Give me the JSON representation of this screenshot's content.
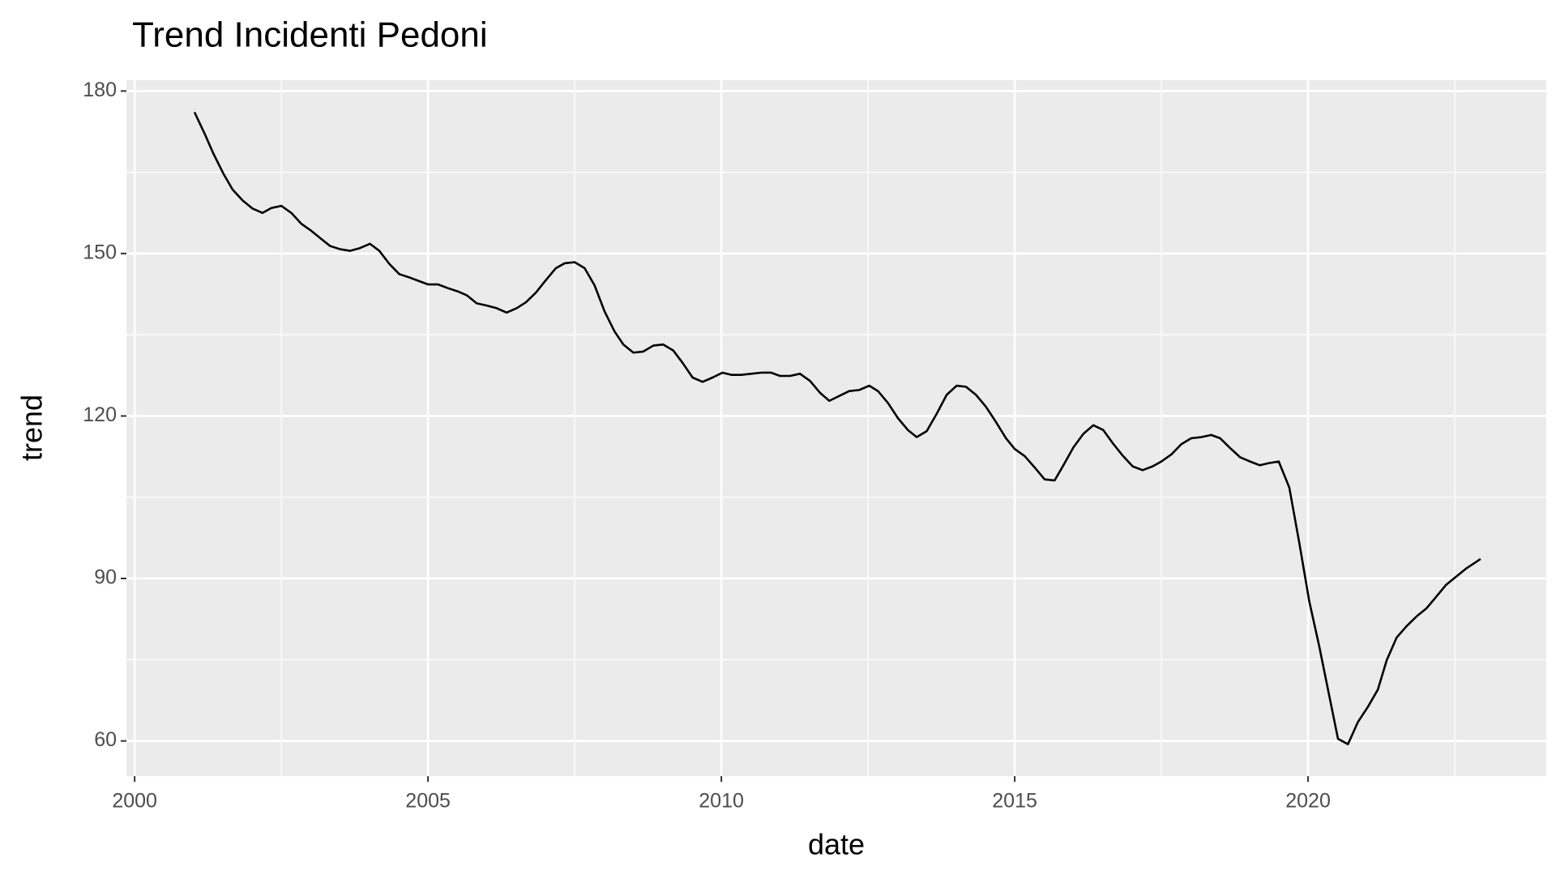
{
  "chart_data": {
    "type": "line",
    "title": "Trend Incidenti Pedoni",
    "x_label": "date",
    "y_label": "trend",
    "x": [
      2001.02,
      2001.19,
      2001.34,
      2001.51,
      2001.67,
      2001.84,
      2002.01,
      2002.18,
      2002.33,
      2002.5,
      2002.67,
      2002.84,
      2003.01,
      2003.18,
      2003.33,
      2003.5,
      2003.67,
      2003.84,
      2004.01,
      2004.17,
      2004.34,
      2004.51,
      2004.68,
      2004.85,
      2005.0,
      2005.17,
      2005.34,
      2005.51,
      2005.66,
      2005.83,
      2006.0,
      2006.17,
      2006.34,
      2006.51,
      2006.67,
      2006.84,
      2007.01,
      2007.18,
      2007.33,
      2007.5,
      2007.67,
      2007.84,
      2008.01,
      2008.18,
      2008.33,
      2008.5,
      2008.67,
      2008.84,
      2009.01,
      2009.18,
      2009.34,
      2009.51,
      2009.68,
      2009.85,
      2010.02,
      2010.17,
      2010.34,
      2010.51,
      2010.68,
      2010.85,
      2011.0,
      2011.17,
      2011.34,
      2011.51,
      2011.68,
      2011.84,
      2012.01,
      2012.18,
      2012.35,
      2012.52,
      2012.67,
      2012.84,
      2013.01,
      2013.18,
      2013.33,
      2013.5,
      2013.67,
      2013.84,
      2014.01,
      2014.17,
      2014.34,
      2014.51,
      2014.68,
      2014.85,
      2015.0,
      2015.17,
      2015.34,
      2015.51,
      2015.68,
      2015.83,
      2016.0,
      2016.17,
      2016.34,
      2016.51,
      2016.67,
      2016.84,
      2017.01,
      2017.18,
      2017.35,
      2017.5,
      2017.67,
      2017.84,
      2018.01,
      2018.18,
      2018.35,
      2018.5,
      2018.67,
      2018.84,
      2019.01,
      2019.18,
      2019.33,
      2019.5,
      2019.68,
      2019.85,
      2020.02,
      2020.19,
      2020.36,
      2020.51,
      2020.68,
      2020.85,
      2021.02,
      2021.19,
      2021.34,
      2021.51,
      2021.68,
      2021.85,
      2022.02,
      2022.19,
      2022.35,
      2022.52,
      2022.69,
      2022.94
    ],
    "series": [
      {
        "name": "trend",
        "color": "#000000",
        "values": [
          176.1,
          172.2,
          168.5,
          164.8,
          161.8,
          159.8,
          158.3,
          157.5,
          158.4,
          158.8,
          157.5,
          155.5,
          154.2,
          152.7,
          151.4,
          150.8,
          150.5,
          151.0,
          151.8,
          150.5,
          148.1,
          146.2,
          145.6,
          144.9,
          144.3,
          144.3,
          143.6,
          143.0,
          142.3,
          140.8,
          140.4,
          139.9,
          139.1,
          139.9,
          141.0,
          142.8,
          145.1,
          147.3,
          148.2,
          148.4,
          147.3,
          144.1,
          139.3,
          135.6,
          133.2,
          131.7,
          131.9,
          133.0,
          133.2,
          132.1,
          129.8,
          127.1,
          126.3,
          127.1,
          128.0,
          127.6,
          127.6,
          127.8,
          128.0,
          128.0,
          127.4,
          127.4,
          127.8,
          126.5,
          124.3,
          122.8,
          123.7,
          124.6,
          124.8,
          125.6,
          124.6,
          122.4,
          119.6,
          117.4,
          116.1,
          117.2,
          120.4,
          123.9,
          125.6,
          125.4,
          123.9,
          121.7,
          118.9,
          115.9,
          113.9,
          112.6,
          110.5,
          108.3,
          108.1,
          110.9,
          114.2,
          116.7,
          118.3,
          117.4,
          115.0,
          112.7,
          110.7,
          110.0,
          110.7,
          111.6,
          112.9,
          114.8,
          115.9,
          116.1,
          116.5,
          115.9,
          114.1,
          112.4,
          111.6,
          110.9,
          111.3,
          111.6,
          106.8,
          96.6,
          85.8,
          77.5,
          68.4,
          60.4,
          59.4,
          63.5,
          66.3,
          69.5,
          74.9,
          79.1,
          81.2,
          83.0,
          84.5,
          86.7,
          88.8,
          90.3,
          91.8,
          93.6
        ]
      }
    ],
    "xlim": [
      1999.86,
      2024.06
    ],
    "xticks": [
      2000,
      2005,
      2010,
      2015,
      2020
    ],
    "ylim": [
      53.5,
      182
    ],
    "yticks": [
      60,
      90,
      120,
      150,
      180
    ],
    "grid": true,
    "panel_color": "#ebebeb"
  }
}
